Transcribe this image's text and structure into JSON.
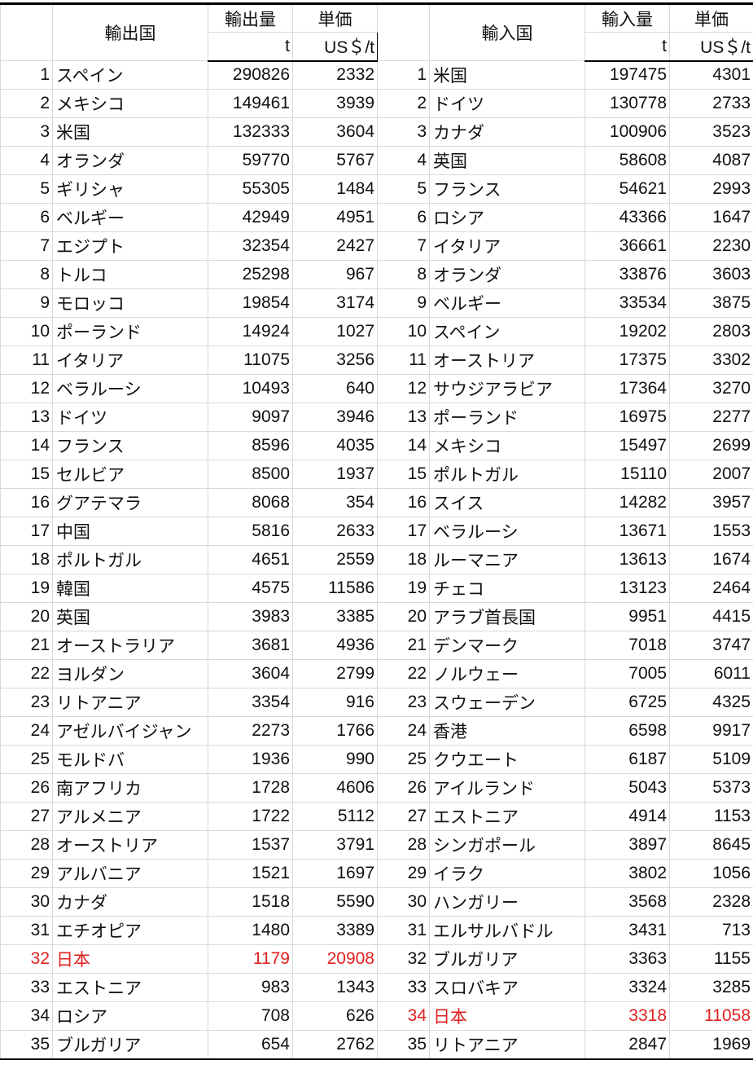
{
  "headers": {
    "export_country": "輸出国",
    "export_qty": "輸出量",
    "unit_price": "単価",
    "import_country": "輸入国",
    "import_qty": "輸入量",
    "unit_t": "t",
    "unit_price_unit": "US＄/t"
  },
  "highlight_color": "#e02020",
  "highlight_country": "日本",
  "exports": [
    [
      "1",
      "スペイン",
      "290826",
      "2332"
    ],
    [
      "2",
      "メキシコ",
      "149461",
      "3939"
    ],
    [
      "3",
      "米国",
      "132333",
      "3604"
    ],
    [
      "4",
      "オランダ",
      "59770",
      "5767"
    ],
    [
      "5",
      "ギリシャ",
      "55305",
      "1484"
    ],
    [
      "6",
      "ベルギー",
      "42949",
      "4951"
    ],
    [
      "7",
      "エジプト",
      "32354",
      "2427"
    ],
    [
      "8",
      "トルコ",
      "25298",
      "967"
    ],
    [
      "9",
      "モロッコ",
      "19854",
      "3174"
    ],
    [
      "10",
      "ポーランド",
      "14924",
      "1027"
    ],
    [
      "11",
      "イタリア",
      "11075",
      "3256"
    ],
    [
      "12",
      "ベラルーシ",
      "10493",
      "640"
    ],
    [
      "13",
      "ドイツ",
      "9097",
      "3946"
    ],
    [
      "14",
      "フランス",
      "8596",
      "4035"
    ],
    [
      "15",
      "セルビア",
      "8500",
      "1937"
    ],
    [
      "16",
      "グアテマラ",
      "8068",
      "354"
    ],
    [
      "17",
      "中国",
      "5816",
      "2633"
    ],
    [
      "18",
      "ポルトガル",
      "4651",
      "2559"
    ],
    [
      "19",
      "韓国",
      "4575",
      "11586"
    ],
    [
      "20",
      "英国",
      "3983",
      "3385"
    ],
    [
      "21",
      "オーストラリア",
      "3681",
      "4936"
    ],
    [
      "22",
      "ヨルダン",
      "3604",
      "2799"
    ],
    [
      "23",
      "リトアニア",
      "3354",
      "916"
    ],
    [
      "24",
      "アゼルバイジャン",
      "2273",
      "1766"
    ],
    [
      "25",
      "モルドバ",
      "1936",
      "990"
    ],
    [
      "26",
      "南アフリカ",
      "1728",
      "4606"
    ],
    [
      "27",
      "アルメニア",
      "1722",
      "5112"
    ],
    [
      "28",
      "オーストリア",
      "1537",
      "3791"
    ],
    [
      "29",
      "アルバニア",
      "1521",
      "1697"
    ],
    [
      "30",
      "カナダ",
      "1518",
      "5590"
    ],
    [
      "31",
      "エチオピア",
      "1480",
      "3389"
    ],
    [
      "32",
      "日本",
      "1179",
      "20908"
    ],
    [
      "33",
      "エストニア",
      "983",
      "1343"
    ],
    [
      "34",
      "ロシア",
      "708",
      "626"
    ],
    [
      "35",
      "ブルガリア",
      "654",
      "2762"
    ]
  ],
  "imports": [
    [
      "1",
      "米国",
      "197475",
      "4301"
    ],
    [
      "2",
      "ドイツ",
      "130778",
      "2733"
    ],
    [
      "3",
      "カナダ",
      "100906",
      "3523"
    ],
    [
      "4",
      "英国",
      "58608",
      "4087"
    ],
    [
      "5",
      "フランス",
      "54621",
      "2993"
    ],
    [
      "6",
      "ロシア",
      "43366",
      "1647"
    ],
    [
      "7",
      "イタリア",
      "36661",
      "2230"
    ],
    [
      "8",
      "オランダ",
      "33876",
      "3603"
    ],
    [
      "9",
      "ベルギー",
      "33534",
      "3875"
    ],
    [
      "10",
      "スペイン",
      "19202",
      "2803"
    ],
    [
      "11",
      "オーストリア",
      "17375",
      "3302"
    ],
    [
      "12",
      "サウジアラビア",
      "17364",
      "3270"
    ],
    [
      "13",
      "ポーランド",
      "16975",
      "2277"
    ],
    [
      "14",
      "メキシコ",
      "15497",
      "2699"
    ],
    [
      "15",
      "ポルトガル",
      "15110",
      "2007"
    ],
    [
      "16",
      "スイス",
      "14282",
      "3957"
    ],
    [
      "17",
      "ベラルーシ",
      "13671",
      "1553"
    ],
    [
      "18",
      "ルーマニア",
      "13613",
      "1674"
    ],
    [
      "19",
      "チェコ",
      "13123",
      "2464"
    ],
    [
      "20",
      "アラブ首長国",
      "9951",
      "4415"
    ],
    [
      "21",
      "デンマーク",
      "7018",
      "3747"
    ],
    [
      "22",
      "ノルウェー",
      "7005",
      "6011"
    ],
    [
      "23",
      "スウェーデン",
      "6725",
      "4325"
    ],
    [
      "24",
      "香港",
      "6598",
      "9917"
    ],
    [
      "25",
      "クウエート",
      "6187",
      "5109"
    ],
    [
      "26",
      "アイルランド",
      "5043",
      "5373"
    ],
    [
      "27",
      "エストニア",
      "4914",
      "1153"
    ],
    [
      "28",
      "シンガポール",
      "3897",
      "8645"
    ],
    [
      "29",
      "イラク",
      "3802",
      "1056"
    ],
    [
      "30",
      "ハンガリー",
      "3568",
      "2328"
    ],
    [
      "31",
      "エルサルバドル",
      "3431",
      "713"
    ],
    [
      "32",
      "ブルガリア",
      "3363",
      "1155"
    ],
    [
      "33",
      "スロバキア",
      "3324",
      "3285"
    ],
    [
      "34",
      "日本",
      "3318",
      "11058"
    ],
    [
      "35",
      "リトアニア",
      "2847",
      "1969"
    ]
  ]
}
